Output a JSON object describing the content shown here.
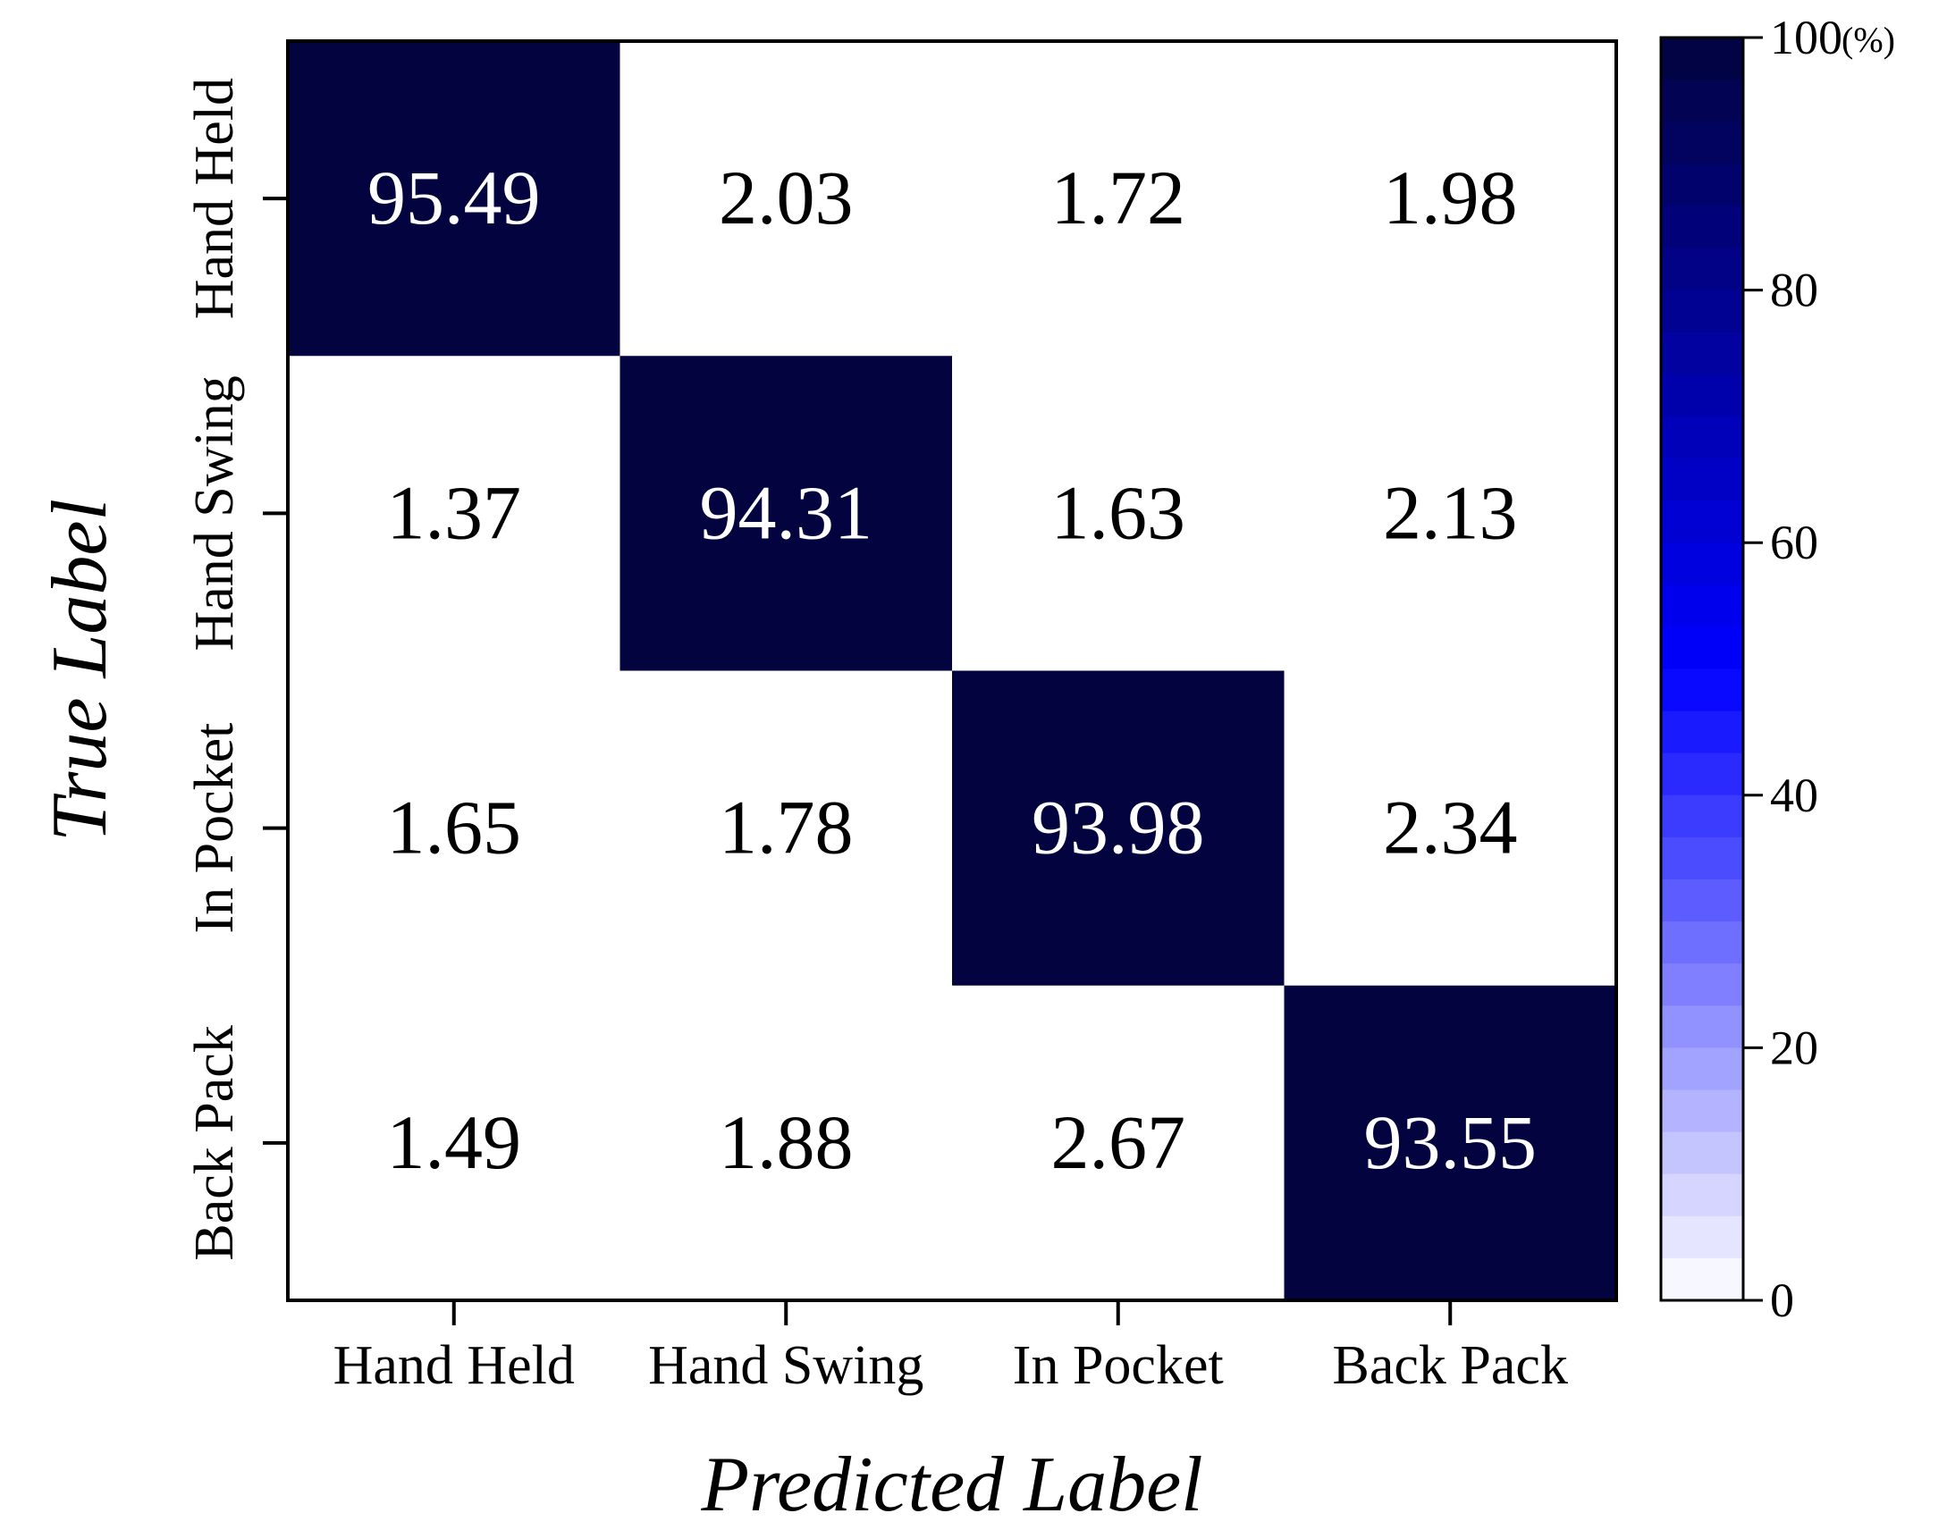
{
  "chart_data": {
    "type": "heatmap",
    "xlabel": "Predicted Label",
    "ylabel": "True Label",
    "x_categories": [
      "Hand Held",
      "Hand Swing",
      "In Pocket",
      "Back Pack"
    ],
    "y_categories": [
      "Hand Held",
      "Hand Swing",
      "In Pocket",
      "Back Pack"
    ],
    "values": [
      [
        "95.49",
        "2.03",
        "1.72",
        "1.98"
      ],
      [
        "1.37",
        "94.31",
        "1.63",
        "2.13"
      ],
      [
        "1.65",
        "1.78",
        "93.98",
        "2.34"
      ],
      [
        "1.49",
        "1.88",
        "2.67",
        "93.55"
      ]
    ],
    "colorbar": {
      "range": [
        0,
        100
      ],
      "ticks": [
        "0",
        "20",
        "40",
        "60",
        "80",
        "100"
      ],
      "unit": "(%)"
    },
    "colors": {
      "high": "#02033f",
      "low": "#ffffff",
      "mid": "#0000ff",
      "text_on_dark": "#ffffff",
      "text_on_light": "#000000"
    }
  }
}
